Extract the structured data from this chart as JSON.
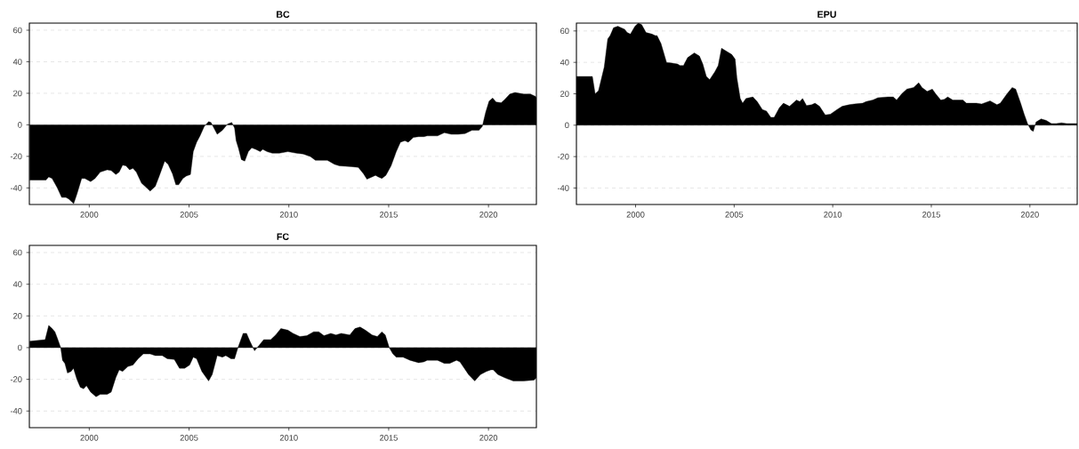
{
  "chart_data": [
    {
      "type": "area",
      "title": "BC",
      "color": "#000000",
      "xlim": [
        1997,
        2022.4
      ],
      "ylim": [
        -50.5,
        64.5
      ],
      "xticks": [
        2000,
        2005,
        2010,
        2015,
        2020
      ],
      "yticks": [
        -40,
        -20,
        0,
        20,
        40,
        60
      ],
      "grid": "y",
      "x": [
        1997.02,
        1997.83,
        1997.97,
        1998.14,
        1998.4,
        1998.62,
        1998.83,
        1998.97,
        1999.22,
        1999.38,
        1999.62,
        1999.78,
        2000.07,
        2000.29,
        2000.55,
        2000.9,
        2001.1,
        2001.33,
        2001.5,
        2001.67,
        2001.84,
        2002.02,
        2002.19,
        2002.36,
        2002.62,
        2002.88,
        2003.05,
        2003.31,
        2003.52,
        2003.78,
        2003.95,
        2004.17,
        2004.34,
        2004.48,
        2004.69,
        2004.86,
        2005.07,
        2005.21,
        2005.38,
        2005.55,
        2005.76,
        2005.98,
        2006.1,
        2006.41,
        2006.67,
        2006.93,
        2007.14,
        2007.28,
        2007.36,
        2007.48,
        2007.62,
        2007.79,
        2007.97,
        2008.14,
        2008.34,
        2008.57,
        2008.69,
        2008.91,
        2009.17,
        2009.52,
        2009.95,
        2010.38,
        2010.72,
        2011.07,
        2011.33,
        2011.59,
        2011.93,
        2012.28,
        2012.53,
        2013.14,
        2013.48,
        2013.74,
        2013.91,
        2014.17,
        2014.34,
        2014.48,
        2014.66,
        2014.86,
        2015.12,
        2015.38,
        2015.59,
        2015.81,
        2015.98,
        2016.24,
        2016.5,
        2016.76,
        2016.93,
        2017.45,
        2017.79,
        2018.14,
        2018.48,
        2018.83,
        2019.17,
        2019.52,
        2019.69,
        2019.86,
        2020.03,
        2020.21,
        2020.38,
        2020.64,
        2020.81,
        2021.07,
        2021.33,
        2021.76,
        2022.1,
        2022.36,
        2022.4
      ],
      "values": [
        -35,
        -35,
        -33,
        -34,
        -40,
        -46,
        -46,
        -47,
        -50,
        -44,
        -34,
        -34,
        -36,
        -34,
        -30,
        -28.5,
        -29,
        -31.5,
        -30,
        -25.5,
        -26,
        -28.5,
        -27.5,
        -30,
        -37,
        -40,
        -42,
        -39,
        -32,
        -23,
        -25,
        -31,
        -38,
        -38,
        -34,
        -32.5,
        -31.5,
        -17,
        -11,
        -7,
        -1,
        2,
        1.5,
        -6,
        -3.5,
        0.5,
        1.5,
        -2,
        -10,
        -15,
        -22,
        -23,
        -17,
        -14.5,
        -15.5,
        -17,
        -15.5,
        -17,
        -18,
        -18,
        -17,
        -18,
        -18.5,
        -20,
        -22.5,
        -22.5,
        -22.5,
        -25,
        -26,
        -26.5,
        -27,
        -31,
        -34.5,
        -33,
        -32,
        -33,
        -34,
        -32,
        -26,
        -17,
        -11,
        -10,
        -11,
        -8,
        -7.5,
        -7.5,
        -7,
        -7,
        -5,
        -6,
        -6,
        -5.5,
        -3.5,
        -3.5,
        -1,
        8,
        15,
        17,
        14.5,
        14,
        16,
        19.5,
        20.5,
        19.5,
        19.5,
        18,
        17
      ]
    },
    {
      "type": "area",
      "title": "EPU",
      "color": "#000000",
      "xlim": [
        1997,
        2022.4
      ],
      "ylim": [
        -50.5,
        65
      ],
      "xticks": [
        2000,
        2005,
        2010,
        2015,
        2020
      ],
      "yticks": [
        -40,
        -20,
        0,
        20,
        40,
        60
      ],
      "grid": "y",
      "x": [
        1997.0,
        1997.81,
        1997.95,
        1998.12,
        1998.41,
        1998.59,
        1998.71,
        1998.88,
        1999.1,
        1999.45,
        1999.57,
        1999.74,
        1999.97,
        2000.14,
        2000.31,
        2000.53,
        2000.83,
        2001.0,
        2001.09,
        2001.29,
        2001.57,
        2001.86,
        2002.12,
        2002.26,
        2002.43,
        2002.64,
        2002.98,
        2003.24,
        2003.41,
        2003.59,
        2003.76,
        2004.02,
        2004.19,
        2004.36,
        2004.62,
        2004.88,
        2005.05,
        2005.14,
        2005.31,
        2005.43,
        2005.6,
        2005.95,
        2006.17,
        2006.43,
        2006.64,
        2006.86,
        2007.03,
        2007.29,
        2007.5,
        2007.81,
        2008.16,
        2008.33,
        2008.47,
        2008.67,
        2008.93,
        2009.1,
        2009.33,
        2009.62,
        2009.88,
        2010.22,
        2010.48,
        2010.83,
        2011.09,
        2011.52,
        2011.69,
        2012.03,
        2012.29,
        2012.81,
        2013.07,
        2013.24,
        2013.5,
        2013.76,
        2014.1,
        2014.36,
        2014.53,
        2014.79,
        2015.05,
        2015.22,
        2015.48,
        2015.66,
        2015.83,
        2016.09,
        2016.34,
        2016.6,
        2016.78,
        2017.29,
        2017.55,
        2017.98,
        2018.33,
        2018.5,
        2018.84,
        2019.1,
        2019.28,
        2019.53,
        2019.71,
        2019.88,
        2020.05,
        2020.17,
        2020.31,
        2020.57,
        2020.83,
        2021.09,
        2021.34,
        2021.6,
        2021.86,
        2022.4
      ],
      "values": [
        31,
        31,
        20,
        22,
        37,
        55,
        57,
        62,
        63,
        61,
        59,
        58,
        63,
        65,
        64,
        59,
        58,
        57,
        57,
        52,
        40,
        39.5,
        39,
        38,
        38,
        43,
        46,
        44,
        39,
        31,
        29,
        34,
        38,
        49,
        47,
        45,
        42,
        30,
        17,
        14,
        17,
        18,
        15,
        10,
        9,
        5,
        5,
        11,
        14,
        12,
        16,
        15,
        17,
        12.5,
        13,
        14,
        12,
        6.5,
        7,
        10,
        12,
        13,
        13.5,
        14,
        15,
        16,
        17.5,
        18,
        18,
        16,
        20,
        23,
        24,
        27,
        24,
        21.5,
        23,
        20,
        16,
        16.5,
        18,
        16,
        16,
        16,
        14,
        14,
        13.5,
        15.5,
        13,
        14,
        20,
        24,
        23,
        14,
        7,
        1,
        -3,
        -4,
        2,
        4,
        3,
        1,
        1,
        1.5,
        1,
        1
      ]
    },
    {
      "type": "area",
      "title": "FC",
      "color": "#000000",
      "xlim": [
        1997,
        2022.4
      ],
      "ylim": [
        -50.5,
        64.5
      ],
      "xticks": [
        2000,
        2005,
        2010,
        2015,
        2020
      ],
      "yticks": [
        -40,
        -20,
        0,
        20,
        40,
        60
      ],
      "grid": "y",
      "x": [
        1997.02,
        1997.79,
        1997.97,
        1998.14,
        1998.28,
        1998.4,
        1998.57,
        1998.66,
        1998.78,
        1998.91,
        1999.09,
        1999.21,
        1999.38,
        1999.55,
        1999.72,
        1999.86,
        2000.07,
        2000.34,
        2000.55,
        2000.9,
        2001.1,
        2001.33,
        2001.5,
        2001.67,
        2001.93,
        2002.19,
        2002.45,
        2002.71,
        2003.05,
        2003.31,
        2003.66,
        2003.91,
        2004.26,
        2004.52,
        2004.78,
        2005.03,
        2005.21,
        2005.38,
        2005.64,
        2005.98,
        2006.16,
        2006.41,
        2006.67,
        2006.84,
        2007.1,
        2007.28,
        2007.45,
        2007.71,
        2007.88,
        2008.05,
        2008.28,
        2008.48,
        2008.74,
        2009.09,
        2009.34,
        2009.6,
        2009.95,
        2010.21,
        2010.55,
        2010.9,
        2011.24,
        2011.5,
        2011.76,
        2012.1,
        2012.36,
        2012.62,
        2013.05,
        2013.31,
        2013.57,
        2013.83,
        2014.17,
        2014.43,
        2014.66,
        2014.83,
        2015.03,
        2015.21,
        2015.38,
        2015.72,
        2016.07,
        2016.5,
        2016.76,
        2016.93,
        2017.45,
        2017.79,
        2018.05,
        2018.4,
        2018.57,
        2019.0,
        2019.31,
        2019.6,
        2019.9,
        2020.12,
        2020.24,
        2020.47,
        2020.81,
        2021.24,
        2021.76,
        2022.28,
        2022.4
      ],
      "values": [
        4,
        5,
        14,
        12,
        10,
        6,
        0,
        -8,
        -10,
        -16,
        -15,
        -13,
        -20,
        -25,
        -26,
        -24,
        -28,
        -31,
        -29.5,
        -29.5,
        -28,
        -19,
        -14,
        -15,
        -12,
        -11,
        -7,
        -4,
        -4,
        -5,
        -5,
        -7,
        -7.5,
        -13,
        -13,
        -11,
        -6,
        -7,
        -15,
        -21,
        -17,
        -5,
        -6,
        -5,
        -7,
        -7,
        0,
        9,
        9,
        4,
        -2,
        1,
        5,
        5,
        8,
        12,
        11,
        9,
        7,
        7.5,
        10,
        10,
        7.5,
        9,
        8,
        9,
        8,
        12,
        13,
        11,
        8,
        7,
        10,
        8,
        0,
        -4,
        -6,
        -6,
        -8,
        -9.5,
        -9,
        -8,
        -8,
        -10,
        -10,
        -8,
        -9,
        -17,
        -21,
        -17,
        -15,
        -14,
        -14,
        -17,
        -19,
        -21,
        -21,
        -20.5,
        -19
      ]
    }
  ]
}
